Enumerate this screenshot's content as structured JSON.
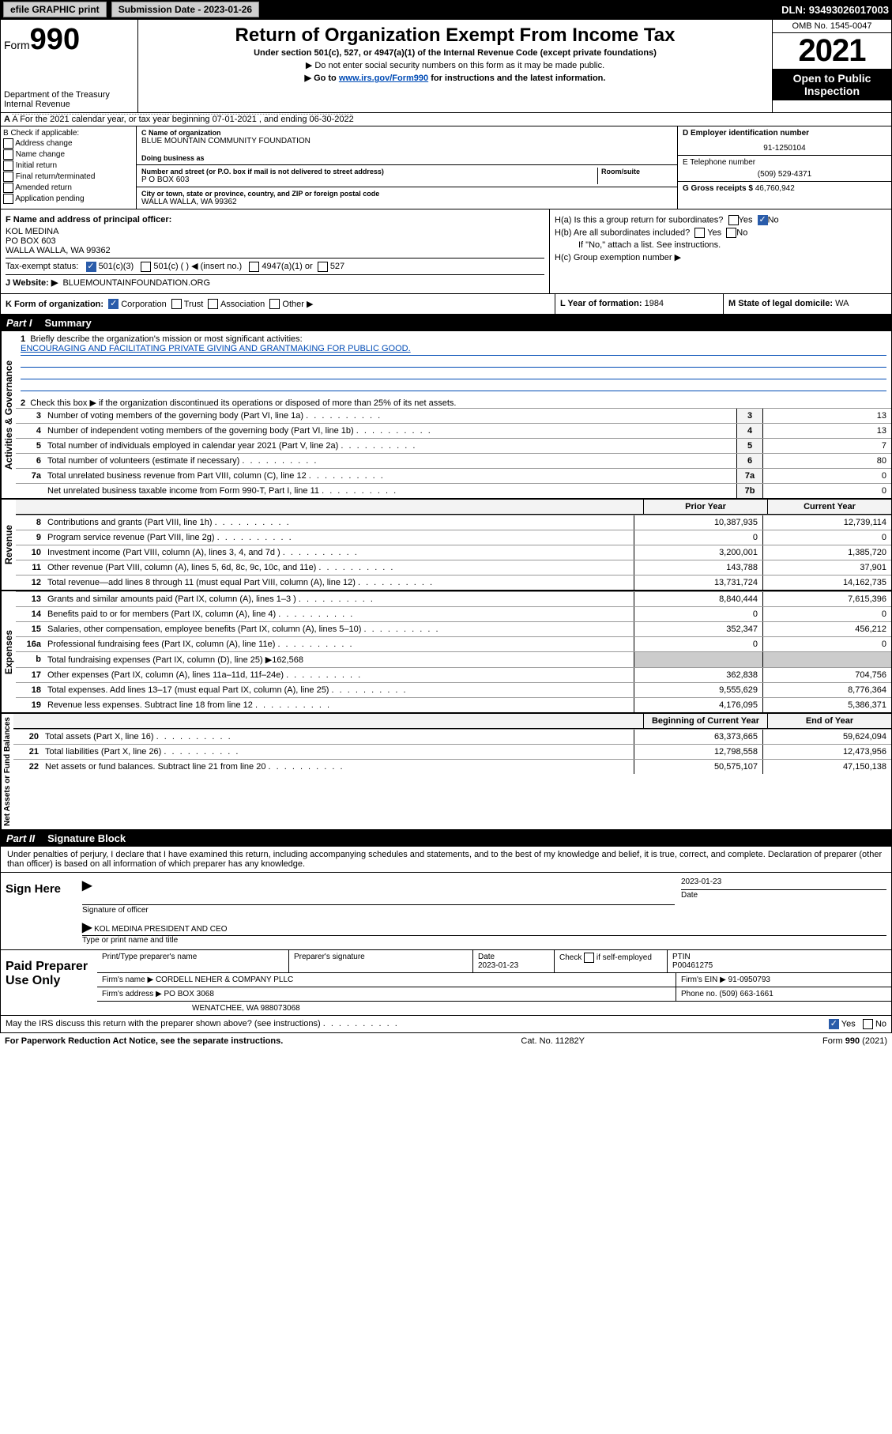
{
  "topbar": {
    "efile": "efile GRAPHIC print",
    "submission_label": "Submission Date - 2023-01-26",
    "dln": "DLN: 93493026017003"
  },
  "header": {
    "form_prefix": "Form",
    "form_number": "990",
    "title": "Return of Organization Exempt From Income Tax",
    "subtitle": "Under section 501(c), 527, or 4947(a)(1) of the Internal Revenue Code (except private foundations)",
    "note1": "▶ Do not enter social security numbers on this form as it may be made public.",
    "note2_pre": "▶ Go to ",
    "note2_link": "www.irs.gov/Form990",
    "note2_post": " for instructions and the latest information.",
    "omb": "OMB No. 1545-0047",
    "year": "2021",
    "open_public": "Open to Public Inspection",
    "dept": "Department of the Treasury\nInternal Revenue Service"
  },
  "row_a": "A For the 2021 calendar year, or tax year beginning 07-01-2021   , and ending 06-30-2022",
  "col_b": {
    "title": "B Check if applicable:",
    "opts": [
      "Address change",
      "Name change",
      "Initial return",
      "Final return/terminated",
      "Amended return",
      "Application pending"
    ]
  },
  "col_c": {
    "name_lbl": "C Name of organization",
    "name": "BLUE MOUNTAIN COMMUNITY FOUNDATION",
    "dba_lbl": "Doing business as",
    "addr_lbl": "Number and street (or P.O. box if mail is not delivered to street address)",
    "room_lbl": "Room/suite",
    "addr": "P O BOX 603",
    "city_lbl": "City or town, state or province, country, and ZIP or foreign postal code",
    "city": "WALLA WALLA, WA  99362"
  },
  "col_d": {
    "ein_lbl": "D Employer identification number",
    "ein": "91-1250104",
    "phone_lbl": "E Telephone number",
    "phone": "(509) 529-4371",
    "gross_lbl": "G Gross receipts $",
    "gross": "46,760,942"
  },
  "block_f": {
    "f_lbl": "F Name and address of principal officer:",
    "f_name": "KOL MEDINA",
    "f_addr1": "PO BOX 603",
    "f_addr2": "WALLA WALLA, WA  99362",
    "tax_lbl": "Tax-exempt status:",
    "t1": "501(c)(3)",
    "t2": "501(c) (  ) ◀ (insert no.)",
    "t3": "4947(a)(1) or",
    "t4": "527",
    "website_lbl": "J   Website: ▶",
    "website": "BLUEMOUNTAINFOUNDATION.ORG",
    "ha": "H(a)  Is this a group return for subordinates?",
    "hb": "H(b)  Are all subordinates included?",
    "hb_note": "If \"No,\" attach a list. See instructions.",
    "hc": "H(c)  Group exemption number ▶",
    "yes": "Yes",
    "no": "No"
  },
  "row_klm": {
    "k": "K Form of organization:",
    "k1": "Corporation",
    "k2": "Trust",
    "k3": "Association",
    "k4": "Other ▶",
    "l_lbl": "L Year of formation:",
    "l_val": "1984",
    "m_lbl": "M State of legal domicile:",
    "m_val": "WA"
  },
  "part1": {
    "label": "Part I",
    "title": "Summary",
    "q1": "Briefly describe the organization's mission or most significant activities:",
    "q1_ans": "ENCOURAGING AND FACILITATING PRIVATE GIVING AND GRANTMAKING FOR PUBLIC GOOD.",
    "q2": "Check this box ▶       if the organization discontinued its operations or disposed of more than 25% of its net assets.",
    "lines_gov": [
      {
        "n": "3",
        "t": "Number of voting members of the governing body (Part VI, line 1a)",
        "b": "3",
        "v": "13"
      },
      {
        "n": "4",
        "t": "Number of independent voting members of the governing body (Part VI, line 1b)",
        "b": "4",
        "v": "13"
      },
      {
        "n": "5",
        "t": "Total number of individuals employed in calendar year 2021 (Part V, line 2a)",
        "b": "5",
        "v": "7"
      },
      {
        "n": "6",
        "t": "Total number of volunteers (estimate if necessary)",
        "b": "6",
        "v": "80"
      },
      {
        "n": "7a",
        "t": "Total unrelated business revenue from Part VIII, column (C), line 12",
        "b": "7a",
        "v": "0"
      },
      {
        "n": "",
        "t": "Net unrelated business taxable income from Form 990-T, Part I, line 11",
        "b": "7b",
        "v": "0"
      }
    ],
    "prior_hdr": "Prior Year",
    "curr_hdr": "Current Year",
    "rev": [
      {
        "n": "8",
        "t": "Contributions and grants (Part VIII, line 1h)",
        "p": "10,387,935",
        "c": "12,739,114"
      },
      {
        "n": "9",
        "t": "Program service revenue (Part VIII, line 2g)",
        "p": "0",
        "c": "0"
      },
      {
        "n": "10",
        "t": "Investment income (Part VIII, column (A), lines 3, 4, and 7d )",
        "p": "3,200,001",
        "c": "1,385,720"
      },
      {
        "n": "11",
        "t": "Other revenue (Part VIII, column (A), lines 5, 6d, 8c, 9c, 10c, and 11e)",
        "p": "143,788",
        "c": "37,901"
      },
      {
        "n": "12",
        "t": "Total revenue—add lines 8 through 11 (must equal Part VIII, column (A), line 12)",
        "p": "13,731,724",
        "c": "14,162,735"
      }
    ],
    "exp": [
      {
        "n": "13",
        "t": "Grants and similar amounts paid (Part IX, column (A), lines 1–3 )",
        "p": "8,840,444",
        "c": "7,615,396"
      },
      {
        "n": "14",
        "t": "Benefits paid to or for members (Part IX, column (A), line 4)",
        "p": "0",
        "c": "0"
      },
      {
        "n": "15",
        "t": "Salaries, other compensation, employee benefits (Part IX, column (A), lines 5–10)",
        "p": "352,347",
        "c": "456,212"
      },
      {
        "n": "16a",
        "t": "Professional fundraising fees (Part IX, column (A), line 11e)",
        "p": "0",
        "c": "0"
      },
      {
        "n": "b",
        "t": "Total fundraising expenses (Part IX, column (D), line 25) ▶162,568",
        "p": "",
        "c": ""
      },
      {
        "n": "17",
        "t": "Other expenses (Part IX, column (A), lines 11a–11d, 11f–24e)",
        "p": "362,838",
        "c": "704,756"
      },
      {
        "n": "18",
        "t": "Total expenses. Add lines 13–17 (must equal Part IX, column (A), line 25)",
        "p": "9,555,629",
        "c": "8,776,364"
      },
      {
        "n": "19",
        "t": "Revenue less expenses. Subtract line 18 from line 12",
        "p": "4,176,095",
        "c": "5,386,371"
      }
    ],
    "net_hdr1": "Beginning of Current Year",
    "net_hdr2": "End of Year",
    "net": [
      {
        "n": "20",
        "t": "Total assets (Part X, line 16)",
        "p": "63,373,665",
        "c": "59,624,094"
      },
      {
        "n": "21",
        "t": "Total liabilities (Part X, line 26)",
        "p": "12,798,558",
        "c": "12,473,956"
      },
      {
        "n": "22",
        "t": "Net assets or fund balances. Subtract line 21 from line 20",
        "p": "50,575,107",
        "c": "47,150,138"
      }
    ],
    "tab_gov": "Activities & Governance",
    "tab_rev": "Revenue",
    "tab_exp": "Expenses",
    "tab_net": "Net Assets or Fund Balances"
  },
  "part2": {
    "label": "Part II",
    "title": "Signature Block",
    "decl": "Under penalties of perjury, I declare that I have examined this return, including accompanying schedules and statements, and to the best of my knowledge and belief, it is true, correct, and complete. Declaration of preparer (other than officer) is based on all information of which preparer has any knowledge.",
    "sign_here": "Sign Here",
    "sig_officer": "Signature of officer",
    "sig_date": "2023-01-23",
    "date_lbl": "Date",
    "officer_name": "KOL MEDINA  PRESIDENT AND CEO",
    "officer_lbl": "Type or print name and title",
    "paid": "Paid Preparer Use Only",
    "prep_name_lbl": "Print/Type preparer's name",
    "prep_sig_lbl": "Preparer's signature",
    "prep_date_lbl": "Date",
    "prep_date": "2023-01-23",
    "prep_check": "Check       if self-employed",
    "ptin_lbl": "PTIN",
    "ptin": "P00461275",
    "firm_name_lbl": "Firm's name    ▶",
    "firm_name": "CORDELL NEHER & COMPANY PLLC",
    "firm_ein_lbl": "Firm's EIN ▶",
    "firm_ein": "91-0950793",
    "firm_addr_lbl": "Firm's address ▶",
    "firm_addr1": "PO BOX 3068",
    "firm_addr2": "WENATCHEE, WA  988073068",
    "firm_phone_lbl": "Phone no.",
    "firm_phone": "(509) 663-1661",
    "may_irs": "May the IRS discuss this return with the preparer shown above? (see instructions)"
  },
  "footer": {
    "left": "For Paperwork Reduction Act Notice, see the separate instructions.",
    "mid": "Cat. No. 11282Y",
    "right": "Form 990 (2021)"
  }
}
